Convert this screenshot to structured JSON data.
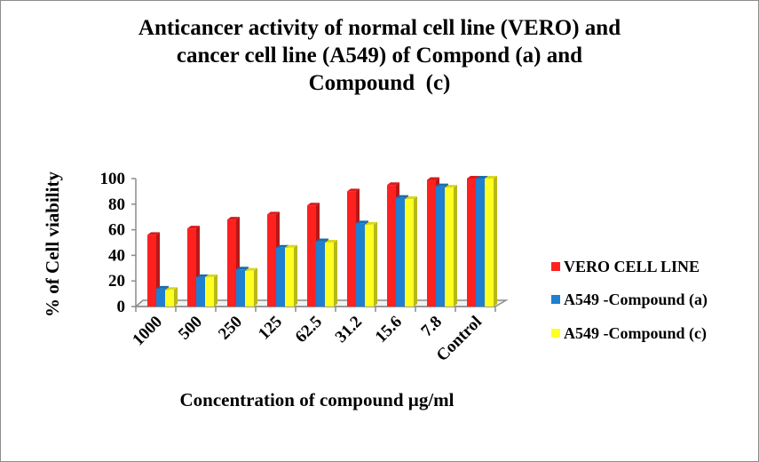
{
  "chart_data": {
    "type": "bar",
    "style": "3d-clustered-column",
    "title_lines": [
      "Anticancer activity of normal cell line (VERO) and",
      "cancer cell line (A549) of Compond (a) and",
      "Compound  (c)"
    ],
    "xlabel": "Concentration of compound µg/ml",
    "ylabel": "% of Cell viability",
    "categories": [
      "1000",
      "500",
      "250",
      "125",
      "62.5",
      "31.2",
      "15.6",
      "7.8",
      "Control"
    ],
    "ylim": [
      0,
      100
    ],
    "yticks": [
      0,
      20,
      40,
      60,
      80,
      100
    ],
    "grid": false,
    "legend_position": "right",
    "series": [
      {
        "name": "VERO CELL LINE",
        "color": "#ff2020",
        "values": [
          56,
          61,
          68,
          72,
          79,
          90,
          95,
          99,
          100
        ]
      },
      {
        "name": "A549 -Compound (a)",
        "color": "#1f7fd0",
        "values": [
          14,
          23,
          29,
          46,
          51,
          65,
          85,
          94,
          100
        ]
      },
      {
        "name": "A549 -Compound (c)",
        "color": "#ffff22",
        "values": [
          13,
          23,
          28,
          46,
          50,
          64,
          84,
          93,
          100
        ]
      }
    ]
  }
}
